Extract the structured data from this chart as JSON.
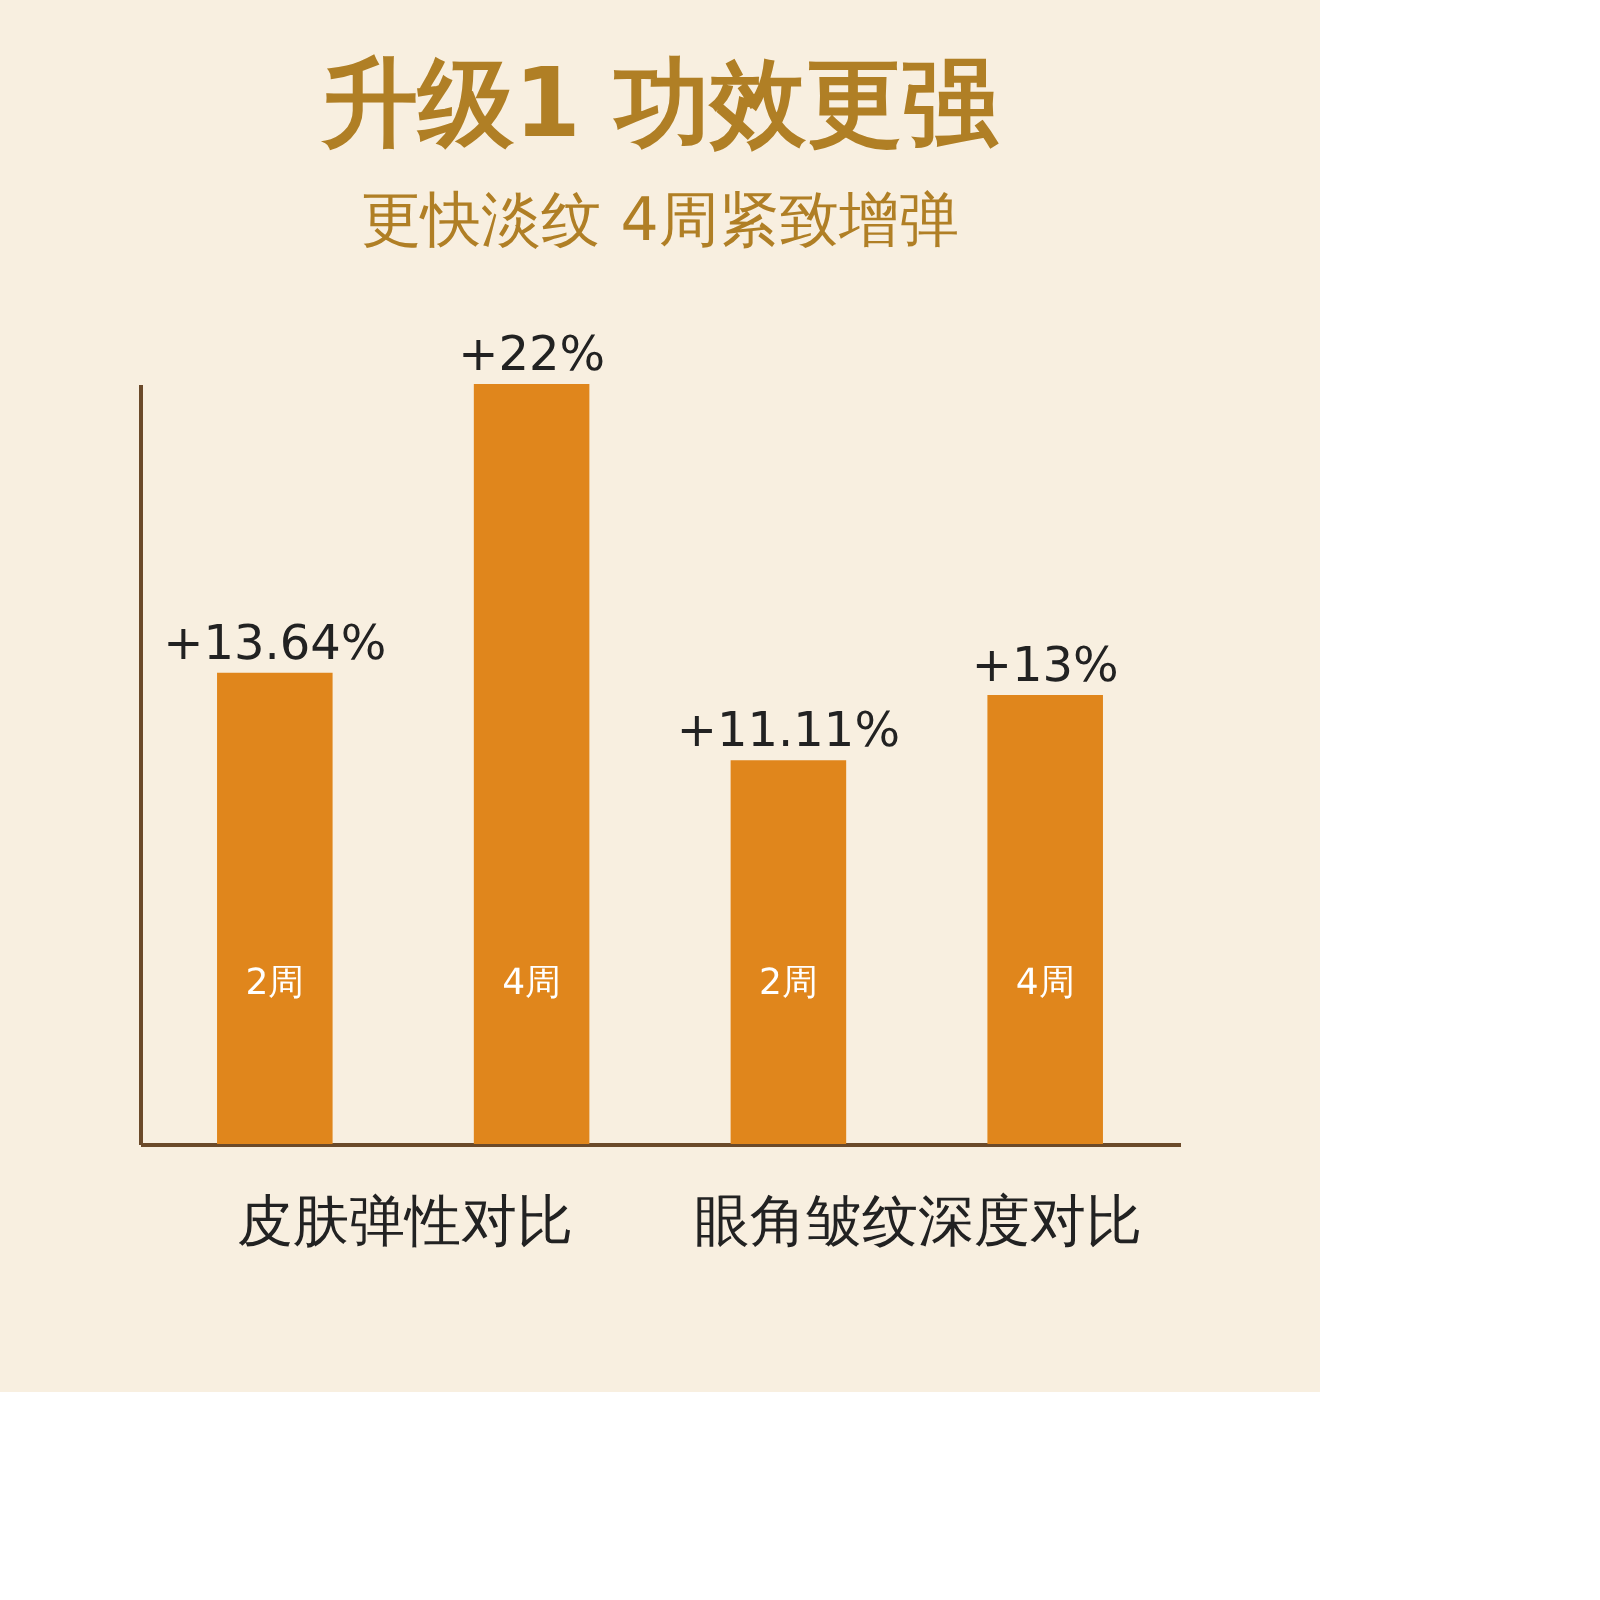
{
  "chart_data": {
    "type": "bar",
    "title": "升级1 功效更强",
    "subtitle": "更快淡纹  4周紧致增弹",
    "categories": [
      "2周",
      "4周",
      "2周",
      "4周"
    ],
    "values": [
      13.64,
      22,
      11.11,
      13
    ],
    "value_labels": [
      "+13.64%",
      "+22%",
      "+11.11%",
      "+13%"
    ],
    "color": "#e0861c",
    "annotations": [
      "皮肤弹性对比",
      "眼角皱纹深度对比"
    ],
    "grid": false,
    "tick_labels": false
  }
}
